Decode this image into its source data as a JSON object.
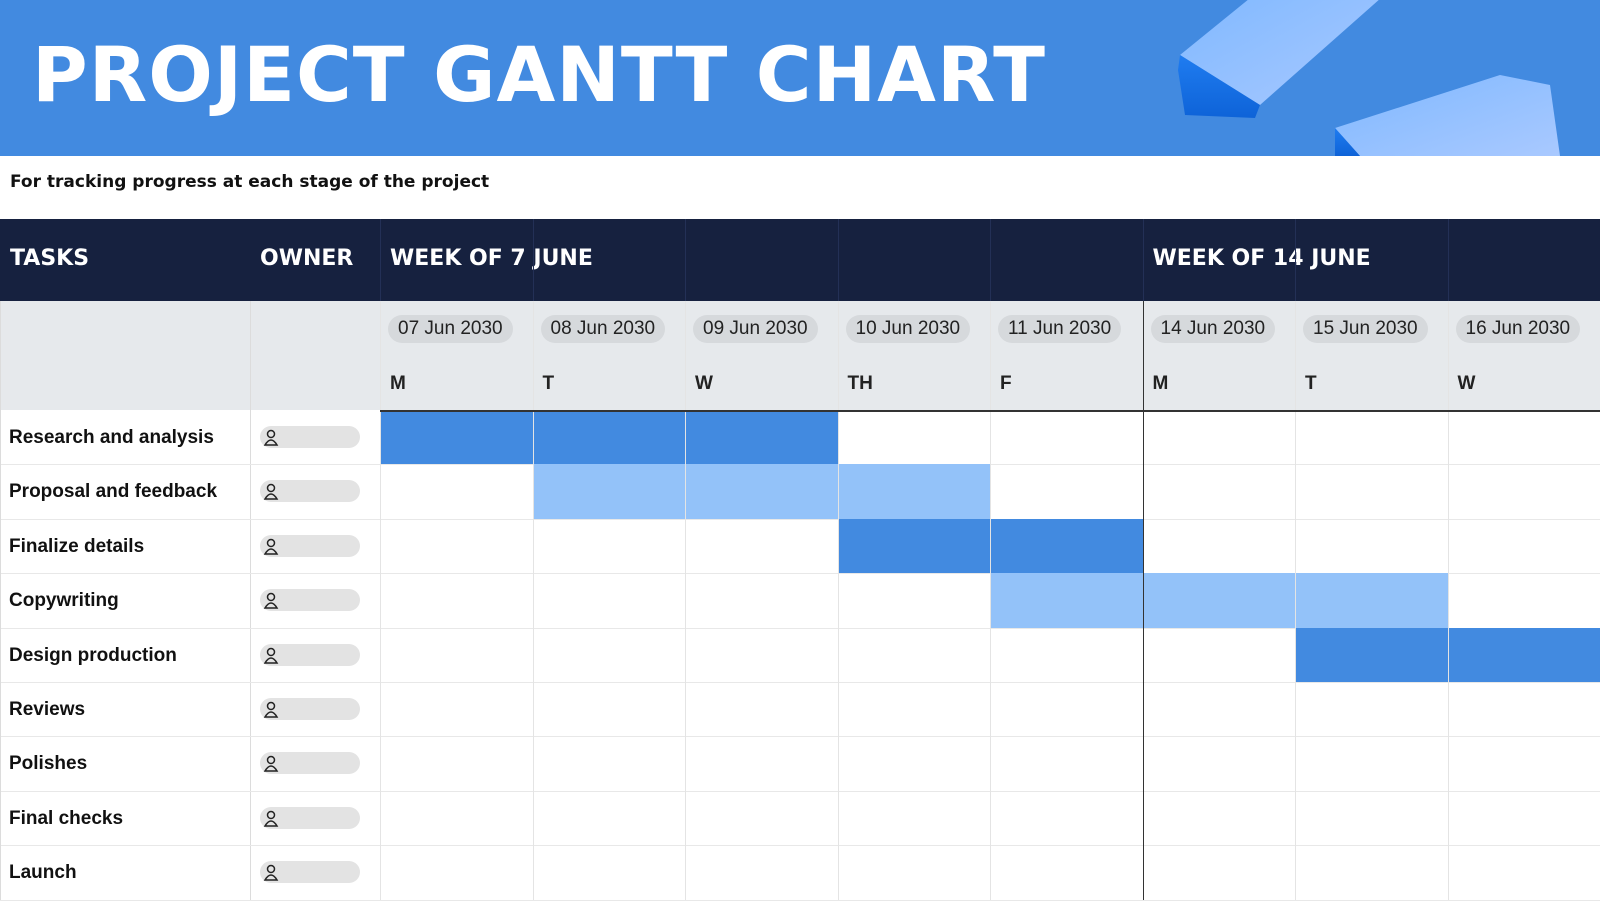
{
  "header": {
    "title": "PROJECT GANTT CHART",
    "subtitle": "For tracking progress at each stage of the project"
  },
  "table": {
    "tasks_heading": "TASKS",
    "owner_heading": "OWNER",
    "week_labels": [
      "WEEK OF 7 JUNE",
      null,
      null,
      null,
      null,
      "WEEK OF 14 JUNE",
      null,
      null
    ],
    "days": [
      {
        "date": "07 Jun 2030",
        "day": "M"
      },
      {
        "date": "08 Jun 2030",
        "day": "T"
      },
      {
        "date": "09 Jun 2030",
        "day": "W"
      },
      {
        "date": "10 Jun 2030",
        "day": "TH"
      },
      {
        "date": "11 Jun 2030",
        "day": "F"
      },
      {
        "date": "14 Jun 2030",
        "day": "M"
      },
      {
        "date": "15 Jun 2030",
        "day": "T"
      },
      {
        "date": "16 Jun 2030",
        "day": "W"
      }
    ],
    "colors": {
      "dark": "#428ae0",
      "light": "#93c2f9"
    },
    "tasks": [
      {
        "name": "Research and analysis",
        "cells": [
          "dark",
          "dark",
          "dark",
          null,
          null,
          null,
          null,
          null
        ]
      },
      {
        "name": "Proposal and feedback",
        "cells": [
          null,
          "light",
          "light",
          "light",
          null,
          null,
          null,
          null
        ]
      },
      {
        "name": "Finalize details",
        "cells": [
          null,
          null,
          null,
          "dark",
          "dark",
          null,
          null,
          null
        ]
      },
      {
        "name": "Copywriting",
        "cells": [
          null,
          null,
          null,
          null,
          "light",
          "light",
          "light",
          null
        ]
      },
      {
        "name": "Design production",
        "cells": [
          null,
          null,
          null,
          null,
          null,
          null,
          "dark",
          "dark"
        ]
      },
      {
        "name": "Reviews",
        "cells": [
          null,
          null,
          null,
          null,
          null,
          null,
          null,
          null
        ]
      },
      {
        "name": "Polishes",
        "cells": [
          null,
          null,
          null,
          null,
          null,
          null,
          null,
          null
        ]
      },
      {
        "name": "Final checks",
        "cells": [
          null,
          null,
          null,
          null,
          null,
          null,
          null,
          null
        ]
      },
      {
        "name": "Launch",
        "cells": [
          null,
          null,
          null,
          null,
          null,
          null,
          null,
          null
        ]
      }
    ]
  }
}
